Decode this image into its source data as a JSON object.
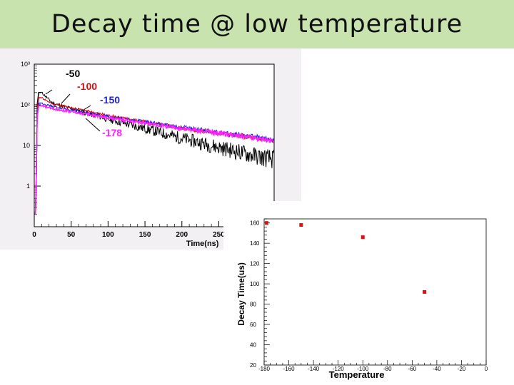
{
  "slide": {
    "title": "Decay time @ low temperature"
  },
  "chart_data": [
    {
      "type": "line",
      "title": "",
      "xlabel": "Time(ns)",
      "ylabel": "",
      "yscale": "log",
      "xlim": [
        0,
        325
      ],
      "ylim": [
        0.1,
        1000
      ],
      "x_ticks": [
        0,
        50,
        100,
        150,
        200,
        250
      ],
      "x_tick_labels": [
        "0",
        "50",
        "100",
        "150",
        "200",
        "250"
      ],
      "y_ticks": [
        1,
        10,
        100,
        1000
      ],
      "y_tick_labels": [
        "1",
        "10",
        "10²",
        "10³"
      ],
      "series": [
        {
          "name": "-50",
          "color": "#000000",
          "x": [
            10,
            25,
            50,
            100,
            150,
            200,
            250,
            300,
            325
          ],
          "y": [
            200,
            110,
            80,
            45,
            26,
            15,
            9,
            5.5,
            4.5
          ]
        },
        {
          "name": "-100",
          "color": "#dd1111",
          "x": [
            10,
            25,
            50,
            100,
            150,
            200,
            250,
            300,
            325
          ],
          "y": [
            150,
            105,
            85,
            55,
            38,
            27,
            20,
            15,
            13
          ]
        },
        {
          "name": "-150",
          "color": "#1f23d6",
          "x": [
            10,
            25,
            50,
            100,
            150,
            200,
            250,
            300,
            325
          ],
          "y": [
            110,
            90,
            75,
            52,
            38,
            28,
            21,
            16,
            14
          ]
        },
        {
          "name": "-178",
          "color": "#ff22ff",
          "x": [
            10,
            25,
            50,
            100,
            150,
            200,
            250,
            300,
            325
          ],
          "y": [
            95,
            80,
            68,
            48,
            35,
            26,
            20,
            15,
            13
          ]
        }
      ],
      "annotations": [
        {
          "text": "-50",
          "color": "#000000"
        },
        {
          "text": "-100",
          "color": "#dd1111"
        },
        {
          "text": "-150",
          "color": "#1f23d6"
        },
        {
          "text": "-178",
          "color": "#ff22ff"
        }
      ]
    },
    {
      "type": "scatter",
      "title": "",
      "xlabel": "Temperature",
      "ylabel": "Decay Time(us)",
      "xlim": [
        -180,
        0
      ],
      "ylim": [
        20,
        164
      ],
      "x_ticks": [
        -180,
        -160,
        -140,
        -120,
        -100,
        -80,
        -60,
        -40,
        -20,
        0
      ],
      "x_tick_labels": [
        "-180",
        "-160",
        "-140",
        "-120",
        "-100",
        "-80",
        "-60",
        "-40",
        "-20",
        "0"
      ],
      "y_ticks": [
        20,
        40,
        60,
        80,
        100,
        120,
        140,
        160
      ],
      "y_tick_labels": [
        "20",
        "40",
        "60",
        "80",
        "100",
        "120",
        "140",
        "160"
      ],
      "marker_color": "#dd1111",
      "x": [
        -178,
        -150,
        -100,
        -50
      ],
      "y": [
        160,
        158,
        146,
        92
      ]
    }
  ]
}
